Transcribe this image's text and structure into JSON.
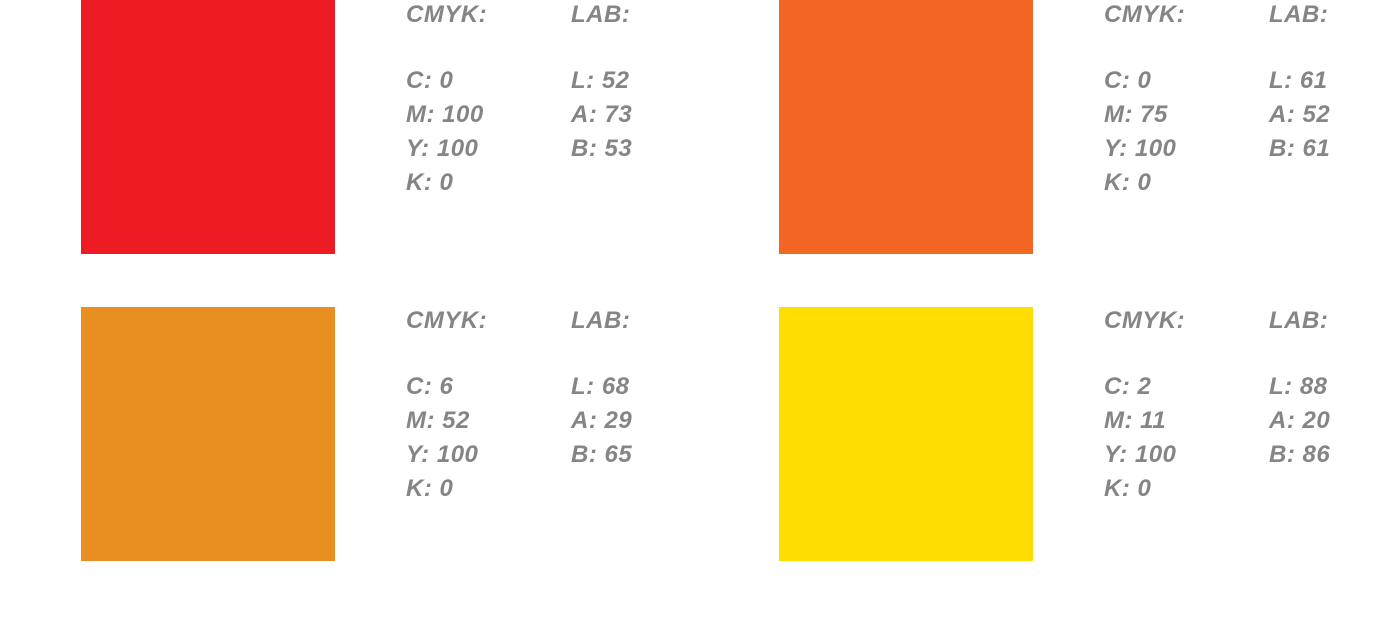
{
  "swatches": [
    {
      "color": "#ED1C24",
      "cmyk": {
        "title": "CMYK:",
        "c": "C: 0",
        "m": "M: 100",
        "y": "Y: 100",
        "k": "K: 0"
      },
      "lab": {
        "title": "LAB:",
        "l": "L: 52",
        "a": "A: 73",
        "b": "B: 53"
      }
    },
    {
      "color": "#F26522",
      "cmyk": {
        "title": "CMYK:",
        "c": "C: 0",
        "m": "M: 75",
        "y": "Y: 100",
        "k": "K: 0"
      },
      "lab": {
        "title": "LAB:",
        "l": "L: 61",
        "a": "A: 52",
        "b": "B: 61"
      }
    },
    {
      "color": "#E98F22",
      "cmyk": {
        "title": "CMYK:",
        "c": "C: 6",
        "m": "M: 52",
        "y": "Y: 100",
        "k": "K: 0"
      },
      "lab": {
        "title": "LAB:",
        "l": "L: 68",
        "a": "A: 29",
        "b": "B: 65"
      }
    },
    {
      "color": "#FFDD00",
      "cmyk": {
        "title": "CMYK:",
        "c": "C: 2",
        "m": "M: 11",
        "y": "Y: 100",
        "k": "K: 0"
      },
      "lab": {
        "title": "LAB:",
        "l": "L: 88",
        "a": "A: 20",
        "b": "B: 86"
      }
    }
  ]
}
